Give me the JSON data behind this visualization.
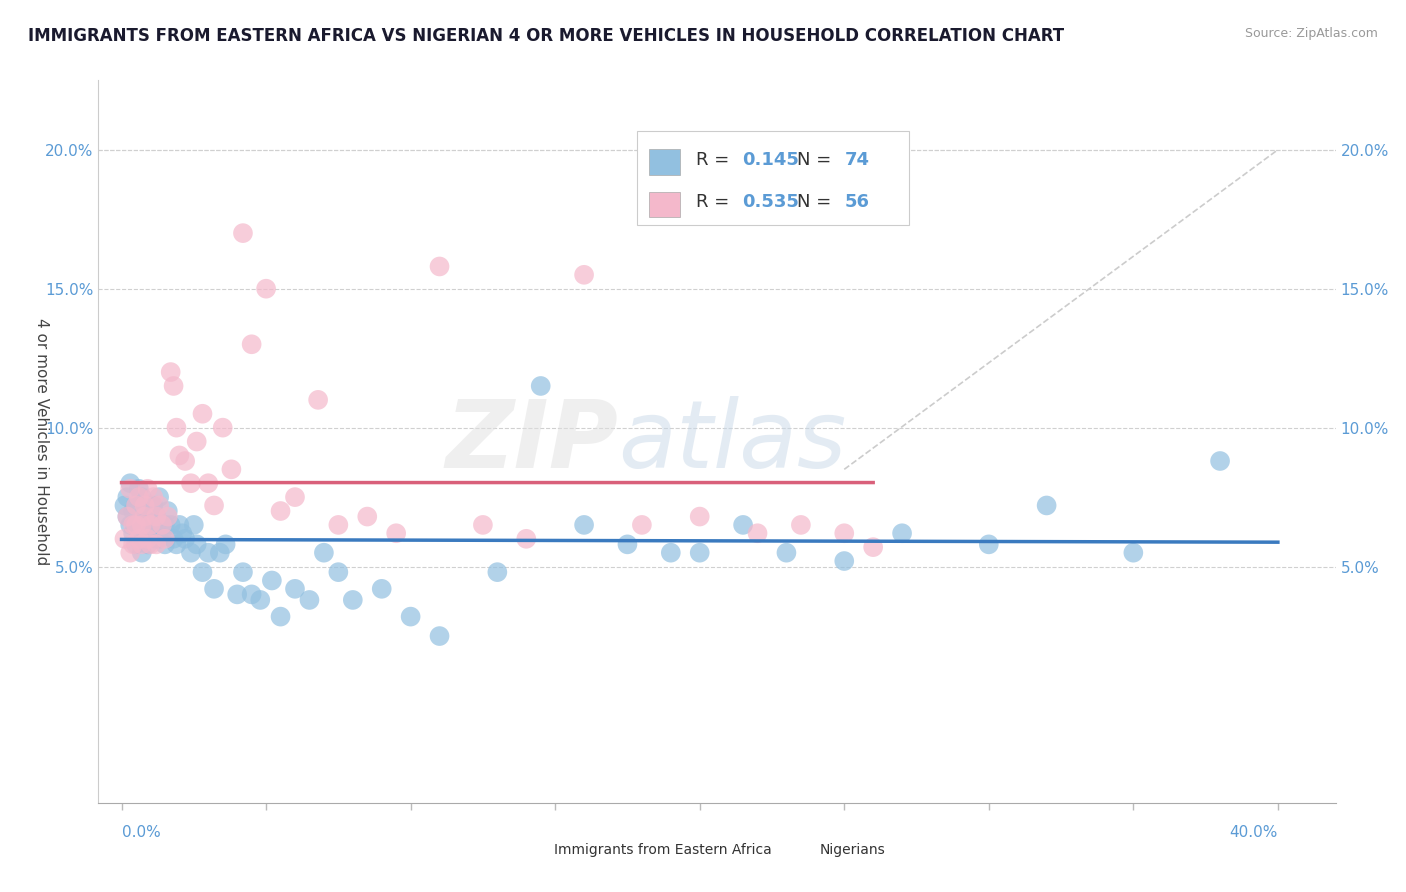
{
  "title": "IMMIGRANTS FROM EASTERN AFRICA VS NIGERIAN 4 OR MORE VEHICLES IN HOUSEHOLD CORRELATION CHART",
  "source": "Source: ZipAtlas.com",
  "ylabel": "4 or more Vehicles in Household",
  "color_blue": "#92c0e0",
  "color_pink": "#f4b8cb",
  "color_blue_line": "#3a7abf",
  "color_pink_line": "#d9607a",
  "color_dashed": "#cccccc",
  "label1": "Immigrants from Eastern Africa",
  "label2": "Nigerians",
  "watermark_zip": "ZIP",
  "watermark_atlas": "atlas",
  "blue_x": [
    0.001,
    0.002,
    0.002,
    0.003,
    0.003,
    0.004,
    0.004,
    0.005,
    0.005,
    0.006,
    0.006,
    0.007,
    0.007,
    0.007,
    0.008,
    0.008,
    0.008,
    0.009,
    0.009,
    0.01,
    0.01,
    0.01,
    0.011,
    0.011,
    0.012,
    0.012,
    0.013,
    0.013,
    0.014,
    0.015,
    0.015,
    0.016,
    0.017,
    0.018,
    0.019,
    0.02,
    0.021,
    0.022,
    0.024,
    0.025,
    0.026,
    0.028,
    0.03,
    0.032,
    0.034,
    0.036,
    0.04,
    0.042,
    0.045,
    0.048,
    0.052,
    0.055,
    0.06,
    0.065,
    0.07,
    0.075,
    0.08,
    0.09,
    0.1,
    0.11,
    0.13,
    0.145,
    0.16,
    0.175,
    0.19,
    0.2,
    0.215,
    0.23,
    0.25,
    0.27,
    0.3,
    0.32,
    0.35,
    0.38
  ],
  "blue_y": [
    0.072,
    0.068,
    0.075,
    0.065,
    0.08,
    0.07,
    0.062,
    0.072,
    0.058,
    0.065,
    0.078,
    0.055,
    0.068,
    0.075,
    0.06,
    0.065,
    0.07,
    0.058,
    0.072,
    0.065,
    0.063,
    0.068,
    0.072,
    0.065,
    0.06,
    0.068,
    0.075,
    0.06,
    0.062,
    0.058,
    0.065,
    0.07,
    0.065,
    0.06,
    0.058,
    0.065,
    0.062,
    0.06,
    0.055,
    0.065,
    0.058,
    0.048,
    0.055,
    0.042,
    0.055,
    0.058,
    0.04,
    0.048,
    0.04,
    0.038,
    0.045,
    0.032,
    0.042,
    0.038,
    0.055,
    0.048,
    0.038,
    0.042,
    0.032,
    0.025,
    0.048,
    0.115,
    0.065,
    0.058,
    0.055,
    0.055,
    0.065,
    0.055,
    0.052,
    0.062,
    0.058,
    0.072,
    0.055,
    0.088
  ],
  "pink_x": [
    0.001,
    0.002,
    0.003,
    0.003,
    0.004,
    0.004,
    0.005,
    0.005,
    0.006,
    0.006,
    0.007,
    0.007,
    0.008,
    0.008,
    0.009,
    0.009,
    0.01,
    0.01,
    0.011,
    0.012,
    0.012,
    0.013,
    0.014,
    0.015,
    0.016,
    0.017,
    0.018,
    0.019,
    0.02,
    0.022,
    0.024,
    0.026,
    0.028,
    0.03,
    0.032,
    0.035,
    0.038,
    0.042,
    0.045,
    0.05,
    0.055,
    0.06,
    0.068,
    0.075,
    0.085,
    0.095,
    0.11,
    0.125,
    0.14,
    0.16,
    0.18,
    0.2,
    0.22,
    0.235,
    0.25,
    0.26
  ],
  "pink_y": [
    0.06,
    0.068,
    0.055,
    0.078,
    0.065,
    0.058,
    0.072,
    0.065,
    0.06,
    0.075,
    0.058,
    0.065,
    0.068,
    0.072,
    0.06,
    0.078,
    0.065,
    0.058,
    0.075,
    0.068,
    0.058,
    0.072,
    0.065,
    0.06,
    0.068,
    0.12,
    0.115,
    0.1,
    0.09,
    0.088,
    0.08,
    0.095,
    0.105,
    0.08,
    0.072,
    0.1,
    0.085,
    0.17,
    0.13,
    0.15,
    0.07,
    0.075,
    0.11,
    0.065,
    0.068,
    0.062,
    0.158,
    0.065,
    0.06,
    0.155,
    0.065,
    0.068,
    0.062,
    0.065,
    0.062,
    0.057
  ],
  "yticks": [
    0.05,
    0.1,
    0.15,
    0.2
  ],
  "ytick_labels": [
    "5.0%",
    "10.0%",
    "15.0%",
    "20.0%"
  ],
  "xtick_positions": [
    0.0,
    0.05,
    0.1,
    0.15,
    0.2,
    0.25,
    0.3,
    0.35,
    0.4
  ],
  "xlim": [
    -0.008,
    0.42
  ],
  "ylim": [
    -0.035,
    0.225
  ],
  "blue_line_x": [
    0.0,
    0.4
  ],
  "pink_line_x": [
    0.0,
    0.26
  ],
  "dash_line": [
    [
      0.25,
      0.4
    ],
    [
      0.085,
      0.2
    ]
  ]
}
